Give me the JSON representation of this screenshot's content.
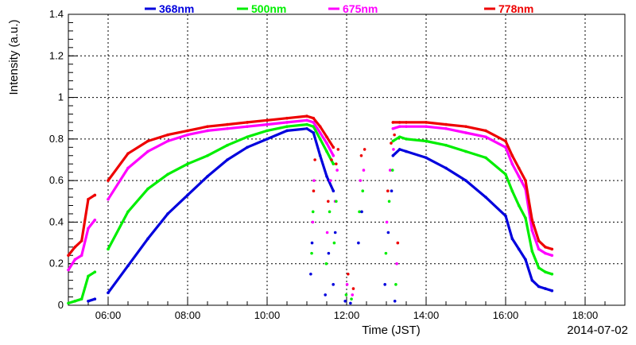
{
  "chart_data": {
    "type": "scatter",
    "xlabel": "Time (JST)",
    "ylabel": "Intensity (a.u.)",
    "date_label": "2014-07-02",
    "xlim": [
      "05:00",
      "19:00"
    ],
    "ylim": [
      0,
      1.4
    ],
    "grid": true,
    "legend_position": "top",
    "x_tick_labels": [
      "06:00",
      "08:00",
      "10:00",
      "12:00",
      "14:00",
      "16:00",
      "18:00"
    ],
    "y_tick_labels": [
      "0",
      "0.2",
      "0.4",
      "0.6",
      "0.8",
      "1",
      "1.2",
      "1.4"
    ],
    "x": [
      "05:00",
      "05:10",
      "05:20",
      "05:30",
      "05:40",
      "05:50",
      "06:00",
      "06:30",
      "07:00",
      "07:30",
      "08:00",
      "08:30",
      "09:00",
      "09:30",
      "10:00",
      "10:30",
      "11:00",
      "11:10",
      "11:20",
      "11:30",
      "11:40",
      "11:50",
      "12:00",
      "12:10",
      "12:20",
      "12:30",
      "12:40",
      "12:50",
      "13:00",
      "13:10",
      "13:20",
      "13:30",
      "14:00",
      "14:30",
      "15:00",
      "15:30",
      "16:00",
      "16:10",
      "16:20",
      "16:30",
      "16:40",
      "16:50",
      "17:00",
      "17:10"
    ],
    "series": [
      {
        "name": "368nm",
        "color": "#0000dd",
        "values": [
          null,
          null,
          null,
          0.02,
          0.03,
          null,
          0.06,
          0.19,
          0.32,
          0.44,
          0.53,
          0.62,
          0.7,
          0.76,
          0.8,
          0.84,
          0.85,
          0.83,
          0.72,
          0.62,
          0.55,
          null,
          null,
          null,
          null,
          null,
          null,
          null,
          null,
          0.72,
          0.75,
          0.74,
          0.71,
          0.66,
          0.6,
          0.52,
          0.43,
          0.32,
          0.27,
          0.22,
          0.12,
          0.09,
          0.08,
          0.07
        ]
      },
      {
        "name": "500nm",
        "color": "#00ee00",
        "values": [
          0.01,
          0.02,
          0.03,
          0.14,
          0.16,
          null,
          0.27,
          0.45,
          0.56,
          0.63,
          0.68,
          0.72,
          0.77,
          0.81,
          0.84,
          0.86,
          0.87,
          0.86,
          0.8,
          0.74,
          0.68,
          null,
          null,
          null,
          null,
          null,
          null,
          null,
          null,
          0.79,
          0.81,
          0.8,
          0.79,
          0.77,
          0.74,
          0.71,
          0.63,
          0.55,
          0.48,
          0.42,
          0.26,
          0.18,
          0.16,
          0.15
        ]
      },
      {
        "name": "675nm",
        "color": "#ff00ff",
        "values": [
          0.17,
          0.22,
          0.24,
          0.37,
          0.41,
          null,
          0.51,
          0.66,
          0.74,
          0.79,
          0.82,
          0.84,
          0.85,
          0.86,
          0.87,
          0.88,
          0.89,
          0.88,
          0.83,
          0.78,
          0.72,
          null,
          null,
          null,
          null,
          null,
          null,
          null,
          null,
          0.85,
          0.86,
          0.86,
          0.86,
          0.85,
          0.83,
          0.81,
          0.76,
          0.68,
          0.62,
          0.56,
          0.36,
          0.27,
          0.25,
          0.24
        ]
      },
      {
        "name": "778nm",
        "color": "#ee0000",
        "values": [
          0.24,
          0.28,
          0.31,
          0.51,
          0.53,
          null,
          0.6,
          0.73,
          0.79,
          0.82,
          0.84,
          0.86,
          0.87,
          0.88,
          0.89,
          0.9,
          0.91,
          0.9,
          0.86,
          0.81,
          0.76,
          null,
          null,
          null,
          null,
          null,
          null,
          null,
          null,
          0.88,
          0.88,
          0.88,
          0.88,
          0.87,
          0.86,
          0.84,
          0.79,
          0.72,
          0.66,
          0.6,
          0.41,
          0.31,
          0.28,
          0.27
        ]
      }
    ],
    "gap_points": [
      {
        "x": "11:08",
        "values": [
          0.15,
          0.25,
          0.4,
          0.55
        ]
      },
      {
        "x": "11:10",
        "values": [
          0.3,
          0.45,
          0.6,
          0.7
        ]
      },
      {
        "x": "11:30",
        "values": [
          0.05,
          0.2,
          0.35,
          0.5
        ]
      },
      {
        "x": "11:35",
        "values": [
          0.25,
          0.45,
          0.6,
          0.7
        ]
      },
      {
        "x": "11:42",
        "values": [
          0.1,
          0.3,
          0.5,
          0.68
        ]
      },
      {
        "x": "11:45",
        "values": [
          0.35,
          0.5,
          0.65,
          0.75
        ]
      },
      {
        "x": "12:00",
        "values": [
          0.02,
          0.05,
          0.1,
          0.15
        ]
      },
      {
        "x": "12:08",
        "values": [
          0.01,
          0.03,
          0.05,
          0.08
        ]
      },
      {
        "x": "12:20",
        "values": [
          0.3,
          0.45,
          0.6,
          0.72
        ]
      },
      {
        "x": "12:25",
        "values": [
          0.45,
          0.55,
          0.65,
          0.75
        ]
      },
      {
        "x": "13:00",
        "values": [
          0.1,
          0.25,
          0.4,
          0.55
        ]
      },
      {
        "x": "13:05",
        "values": [
          0.35,
          0.5,
          0.65,
          0.78
        ]
      },
      {
        "x": "13:10",
        "values": [
          0.55,
          0.65,
          0.75,
          0.82
        ]
      },
      {
        "x": "13:15",
        "values": [
          0.02,
          0.1,
          0.2,
          0.3
        ]
      }
    ]
  }
}
